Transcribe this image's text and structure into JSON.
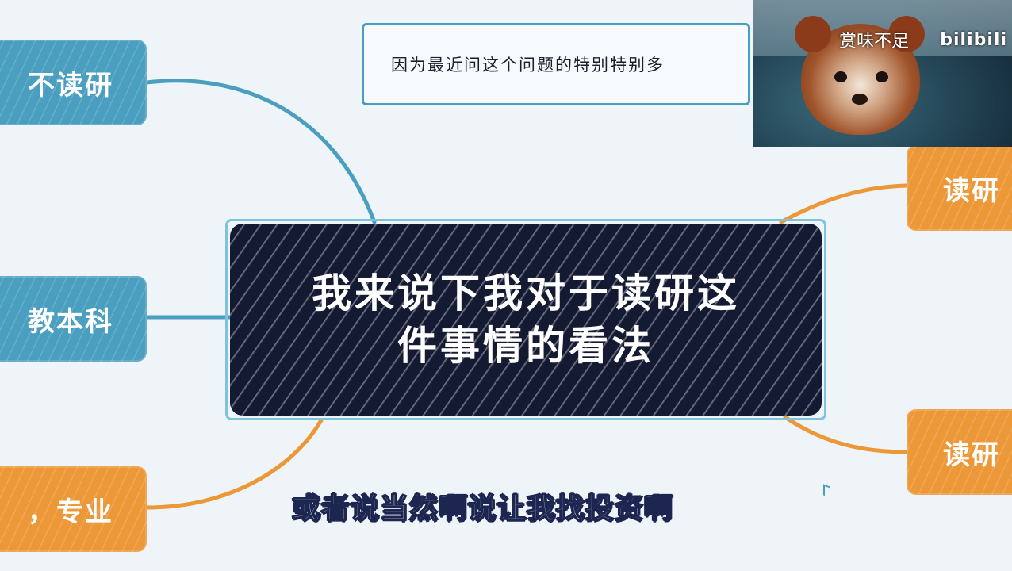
{
  "central": {
    "line1": "我来说下我对于读研这",
    "line2": "件事情的看法"
  },
  "note": {
    "text": "因为最近问这个问题的特别特别多"
  },
  "branches": {
    "left_top": "不读研",
    "left_middle": "教本科",
    "left_bottom": "，专业",
    "right_top": "读研",
    "right_bottom": "读研"
  },
  "video": {
    "title": "赏味不足",
    "logo": "bilibili"
  },
  "subtitle": "或者说当然啊说让我找投资啊",
  "colors": {
    "blue": "#4a9fc0",
    "orange": "#ec9838",
    "central_bg": "#151a33",
    "background": "#eef4f7"
  }
}
